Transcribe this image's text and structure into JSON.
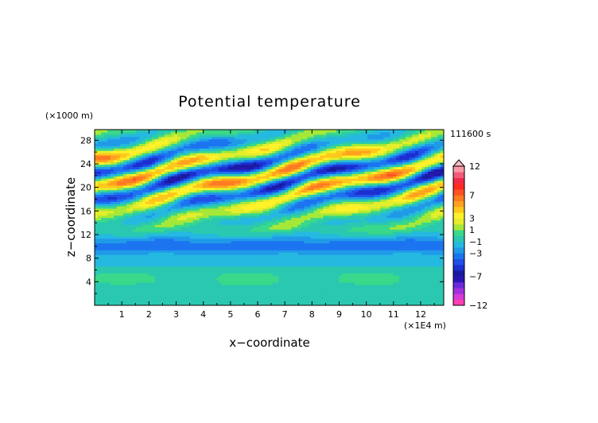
{
  "chart_data": {
    "type": "heatmap",
    "title": "Potential temperature",
    "xlabel": "x−coordinate",
    "ylabel": "z−coordinate",
    "x_unit_label": "(×1E4 m)",
    "y_unit_label": "(×1000 m)",
    "time_label": "111600 s",
    "xlim": [
      0,
      12.85
    ],
    "ylim": [
      0,
      29.8
    ],
    "x_ticks": [
      "1",
      "2",
      "3",
      "4",
      "5",
      "6",
      "7",
      "8",
      "9",
      "10",
      "11",
      "12"
    ],
    "y_ticks": [
      "4",
      "8",
      "12",
      "16",
      "20",
      "24",
      "28"
    ],
    "colorbar": {
      "min": -12,
      "max": 12,
      "levels": [
        -12,
        -11,
        -10,
        -9,
        -8,
        -7,
        -6,
        -5,
        -4,
        -3,
        -2,
        -1,
        0,
        1,
        2,
        3,
        4,
        5,
        6,
        7,
        8,
        9,
        10,
        11,
        12
      ],
      "colors": [
        "#ff3fb4",
        "#d63ad6",
        "#a030e0",
        "#6a2ad8",
        "#2a16b0",
        "#1a1aa0",
        "#1c2fd0",
        "#2050e8",
        "#1c74f0",
        "#209ae8",
        "#25b9e0",
        "#2ac8b0",
        "#3ad88a",
        "#a6e838",
        "#e4ee2c",
        "#fff22a",
        "#ffc81c",
        "#ffa21e",
        "#ff7a22",
        "#ff5024",
        "#ff2a22",
        "#f02a48",
        "#f45a78",
        "#f89aa6",
        "#fbbcc4"
      ],
      "tick_labels": [
        "12",
        "7",
        "3",
        "1",
        "−1",
        "−3",
        "−7",
        "−12"
      ],
      "extend": "max"
    }
  }
}
